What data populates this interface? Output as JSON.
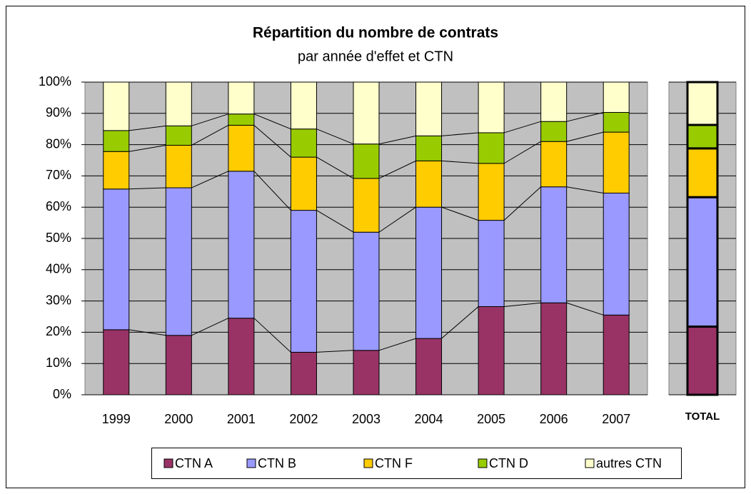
{
  "chart_data": {
    "type": "bar",
    "stacked": true,
    "title": "Répartition du nombre de contrats",
    "subtitle": "par année d'effet et CTN",
    "categories": [
      "1999",
      "2000",
      "2001",
      "2002",
      "2003",
      "2004",
      "2005",
      "2006",
      "2007",
      "TOTAL"
    ],
    "series": [
      {
        "name": "CTN A",
        "color": "#993366",
        "values": [
          20.8,
          19,
          24.5,
          13.6,
          14.2,
          18,
          28.2,
          29.4,
          25.5,
          21.8
        ]
      },
      {
        "name": "CTN B",
        "color": "#9999ff",
        "values": [
          45,
          47.2,
          47,
          45.4,
          37.8,
          42,
          27.6,
          37.1,
          39,
          41.4
        ]
      },
      {
        "name": "CTN F",
        "color": "#ffcc00",
        "values": [
          12,
          13.6,
          14.7,
          17,
          17.2,
          14.8,
          18.2,
          14.5,
          19.5,
          15.6
        ]
      },
      {
        "name": "CTN D",
        "color": "#99cc00",
        "values": [
          6.7,
          6.2,
          3.6,
          9,
          11,
          8,
          9.8,
          6.4,
          6.3,
          7.5
        ]
      },
      {
        "name": "autres CTN",
        "color": "#ffffcc",
        "values": [
          15.5,
          14,
          10.2,
          15,
          19.8,
          17.2,
          16.2,
          12.6,
          9.7,
          13.7
        ]
      }
    ],
    "ylim": [
      0,
      100
    ],
    "yticks": [
      {
        "value": 0,
        "label": "0%"
      },
      {
        "value": 10,
        "label": "10%"
      },
      {
        "value": 20,
        "label": "20%"
      },
      {
        "value": 30,
        "label": "30%"
      },
      {
        "value": 40,
        "label": "40%"
      },
      {
        "value": 50,
        "label": "50%"
      },
      {
        "value": 60,
        "label": "60%"
      },
      {
        "value": 70,
        "label": "70%"
      },
      {
        "value": 80,
        "label": "80%"
      },
      {
        "value": 90,
        "label": "90%"
      },
      {
        "value": 100,
        "label": "100%"
      }
    ],
    "grid": true,
    "legend": "bottom"
  }
}
